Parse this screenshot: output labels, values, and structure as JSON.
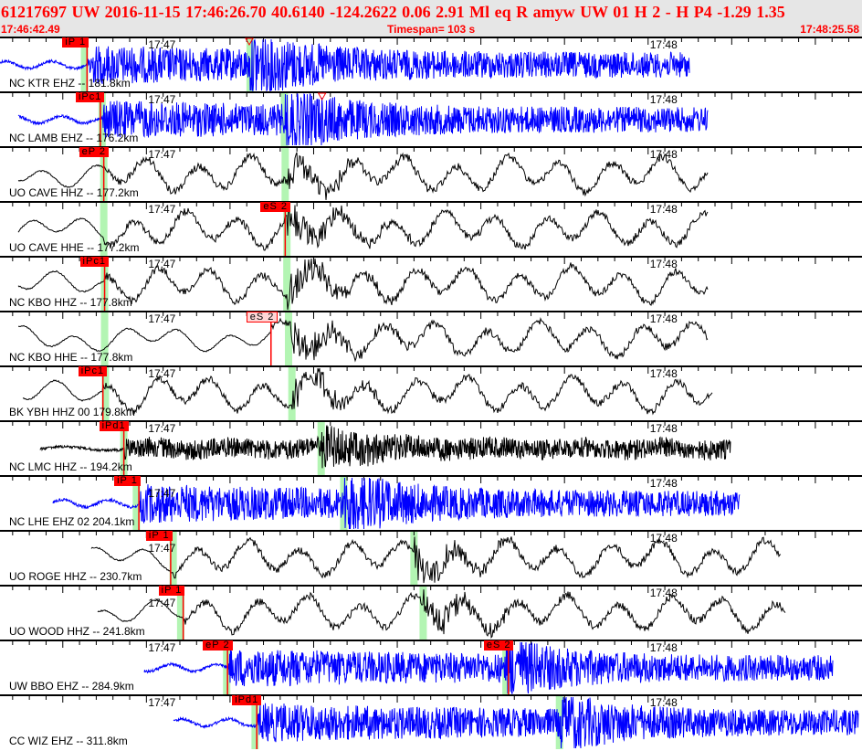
{
  "header": {
    "title": "61217697 UW 2016-11-15 17:46:26.70    40.6140 -124.2622    0.06  2.91 Ml   eq   R amyw     UW 01  H   2  -  H P4   -1.29  1.35",
    "start_time": "17:46:42.49",
    "timespan": "Timespan= 103 s",
    "end_time": "17:48:25.58"
  },
  "time_labels": [
    "17:47",
    "17:48"
  ],
  "colors": {
    "header_text": "#ff0000",
    "header_bg": "#e6e6e6",
    "pick": "#ff0000",
    "theoretical_marker": "#b3f5b3",
    "short_period": "#0000ff",
    "broadband": "#000000"
  },
  "traces": [
    {
      "label": "NC KTR EHZ -- 181.8km",
      "color": "#0000ff",
      "picks": [
        {
          "label": "iP 1",
          "time": "17:46:52.9"
        }
      ],
      "s_marker": "17:47:12.3",
      "markers": [
        "17:46:52.6",
        "17:47:12.4"
      ]
    },
    {
      "label": "NC LAMB EHZ -- 176.2km",
      "color": "#0000ff",
      "picks": [
        {
          "label": "iPc1",
          "time": "17:46:54.5"
        }
      ],
      "s_marker": "17:47:21.0",
      "markers": [
        "17:46:54.7",
        "17:47:16.5"
      ]
    },
    {
      "label": "UO CAVE HHZ -- 177.2km",
      "color": "#000000",
      "picks": [
        {
          "label": "eP 2",
          "time": "17:46:54.9"
        }
      ],
      "markers": [
        "17:46:54.9",
        "17:47:16.6"
      ]
    },
    {
      "label": "UO CAVE HHE -- 177.2km",
      "color": "#000000",
      "picks": [
        {
          "label": "eS 2",
          "time": "17:47:16.6"
        }
      ],
      "markers": [
        "17:46:54.9",
        "17:47:16.8"
      ]
    },
    {
      "label": "NC KBO HHZ -- 177.8km",
      "color": "#000000",
      "picks": [
        {
          "label": "iPc1",
          "time": "17:46:55.0"
        }
      ],
      "markers": [
        "17:46:55.0",
        "17:47:16.8"
      ]
    },
    {
      "label": "NC KBO HHE -- 177.8km",
      "color": "#000000",
      "picks": [
        {
          "label": "eS 2",
          "time": "17:47:14.9",
          "pending": true
        }
      ],
      "markers": [
        "17:46:55.0",
        "17:47:17.0"
      ]
    },
    {
      "label": "BK YBH HHZ 00 179.8km",
      "color": "#000000",
      "picks": [
        {
          "label": "iPc1",
          "time": "17:46:54.8"
        }
      ],
      "markers": [
        "17:46:55.1",
        "17:47:17.4"
      ]
    },
    {
      "label": "NC LMC HHZ -- 194.2km",
      "color": "#000000",
      "picks": [
        {
          "label": "iPd1",
          "time": "17:46:57.3"
        }
      ],
      "markers": [
        "17:46:57.3",
        "17:47:20.9"
      ]
    },
    {
      "label": "NC LHE EHZ 02 204.1km",
      "color": "#0000ff",
      "picks": [
        {
          "label": "iP 1",
          "time": "17:46:59.1"
        }
      ],
      "markers": [
        "17:46:58.8",
        "17:47:23.6"
      ]
    },
    {
      "label": "UO ROGE HHZ -- 230.7km",
      "color": "#000000",
      "picks": [
        {
          "label": "iP 1",
          "time": "17:47:02.9"
        }
      ],
      "markers": [
        "17:47:03.2",
        "17:47:32.0"
      ]
    },
    {
      "label": "UO WOOD HHZ -- 241.8km",
      "color": "#000000",
      "picks": [
        {
          "label": "iP 1",
          "time": "17:47:04.4"
        }
      ],
      "markers": [
        "17:47:04.1",
        "17:47:33.1"
      ]
    },
    {
      "label": "UW BBO EHZ -- 284.9km",
      "color": "#0000ff",
      "picks": [
        {
          "label": "eP 2",
          "time": "17:47:09.7"
        },
        {
          "label": "eS 2",
          "time": "17:47:43.3"
        }
      ],
      "markers": [
        "17:47:09.6",
        "17:47:43.0"
      ]
    },
    {
      "label": "CC WIZ EHZ -- 311.8km",
      "color": "#0000ff",
      "picks": [
        {
          "label": "iPd1",
          "time": "17:47:13.2"
        }
      ],
      "markers": [
        "17:47:13.0",
        "17:47:49.4"
      ]
    }
  ]
}
